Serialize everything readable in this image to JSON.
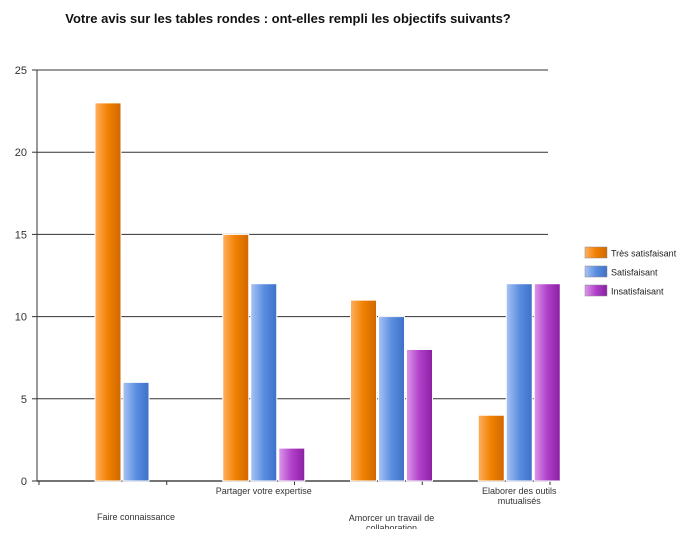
{
  "chart_data": {
    "type": "bar",
    "title": "Votre avis sur les tables rondes : ont-elles rempli les objectifs suivants?",
    "xlabel": "",
    "ylabel": "",
    "categories": [
      "Faire connaissance",
      "Partager votre expertise",
      "Amorcer un travail de collaboration",
      "Elaborer des outils mutualisés"
    ],
    "series": [
      {
        "name": "Très satisfaisant",
        "color": "#f08000",
        "values": [
          23,
          15,
          11,
          4
        ]
      },
      {
        "name": "Satisfaisant",
        "color": "#5b8ee0",
        "values": [
          6,
          12,
          10,
          12
        ]
      },
      {
        "name": "Insatisfaisant",
        "color": "#b040c8",
        "values": [
          0,
          2,
          8,
          12
        ]
      }
    ],
    "ylim": [
      0,
      25
    ],
    "yticks": [
      0,
      5,
      10,
      15,
      20,
      25
    ],
    "grid": true,
    "legend_position": "right"
  }
}
